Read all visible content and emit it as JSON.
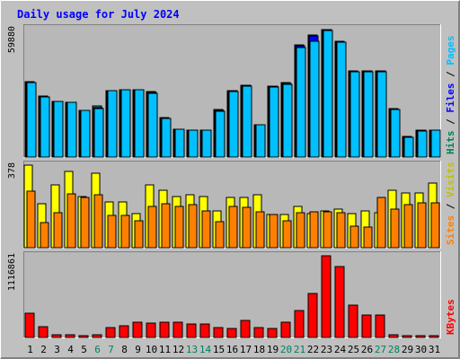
{
  "chart_data": {
    "title": "Daily usage for July 2024",
    "days": [
      "1",
      "2",
      "3",
      "4",
      "5",
      "6",
      "7",
      "8",
      "9",
      "10",
      "11",
      "12",
      "13",
      "14",
      "15",
      "16",
      "17",
      "18",
      "19",
      "20",
      "21",
      "22",
      "23",
      "24",
      "25",
      "26",
      "27",
      "28",
      "29",
      "30",
      "31"
    ],
    "weekend_days": [
      "6",
      "7",
      "13",
      "14",
      "20",
      "21",
      "27",
      "28"
    ],
    "panels": [
      {
        "name": "hits-files-pages",
        "type": "bar",
        "max_label": "59880",
        "ylim": [
          0,
          59880
        ],
        "right_labels": [
          {
            "text": "Hits",
            "color": "#00805c"
          },
          {
            "text": " / ",
            "color": "#000000"
          },
          {
            "text": "Files",
            "color": "#0000ff"
          },
          {
            "text": " / ",
            "color": "#000000"
          },
          {
            "text": "Pages",
            "color": "#00c0ff"
          }
        ],
        "series": [
          {
            "name": "Hits",
            "color": "#008080",
            "values": [
              35000,
              28500,
              26000,
              25500,
              21700,
              23700,
              31000,
              31300,
              31500,
              30500,
              18500,
              13000,
              12700,
              12700,
              22000,
              31000,
              33500,
              15000,
              33000,
              34700,
              52500,
              57000,
              59600,
              54000,
              40000,
              40200,
              40200,
              22500,
              9500,
              12500,
              12600
            ]
          },
          {
            "name": "Files",
            "color": "#0000ff",
            "values": [
              34800,
              28200,
              26000,
              25400,
              21600,
              23100,
              30900,
              31200,
              31300,
              30300,
              18200,
              13000,
              12600,
              12600,
              21900,
              30800,
              33300,
              14900,
              32900,
              34500,
              52000,
              56500,
              59400,
              53800,
              39800,
              40000,
              40000,
              22300,
              9400,
              12400,
              12500
            ]
          },
          {
            "name": "Pages",
            "color": "#00c0ff",
            "values": [
              34800,
              28000,
              26000,
              25400,
              21600,
              22600,
              30800,
              31200,
              31200,
              29800,
              18000,
              13000,
              12600,
              12600,
              21500,
              30500,
              33000,
              14900,
              32800,
              34000,
              51000,
              54000,
              59000,
              53500,
              39600,
              39900,
              39900,
              22000,
              9400,
              12200,
              12400
            ]
          }
        ]
      },
      {
        "name": "visits-sites",
        "type": "bar",
        "max_label": "378",
        "ylim": [
          0,
          378
        ],
        "right_labels": [
          {
            "text": "Sites",
            "color": "#ff8000"
          },
          {
            "text": " / ",
            "color": "#000000"
          },
          {
            "text": "Visits",
            "color": "#c0c000"
          }
        ],
        "series": [
          {
            "name": "Visits",
            "color": "#ffff00",
            "values": [
              378,
              200,
              286,
              349,
              236,
              343,
              211,
              211,
              156,
              286,
              265,
              236,
              244,
              236,
              170,
              230,
              230,
              244,
              153,
              153,
              190,
              156,
              167,
              176,
              156,
              170,
              162,
              262,
              251,
              251,
              294
            ]
          },
          {
            "name": "Sites",
            "color": "#ff8000",
            "values": [
              257,
              117,
              159,
              246,
              231,
              241,
              148,
              148,
              124,
              191,
              201,
              191,
              196,
              167,
              121,
              191,
              186,
              164,
              153,
              124,
              162,
              164,
              164,
              159,
              100,
              96,
              230,
              178,
              199,
              206,
              204
            ]
          }
        ]
      },
      {
        "name": "kbytes",
        "type": "bar",
        "max_label": "1116861",
        "ylim": [
          0,
          1116861
        ],
        "right_labels": [
          {
            "text": "KBytes",
            "color": "#ff0000"
          }
        ],
        "series": [
          {
            "name": "KBytes",
            "color": "#ff0000",
            "values": [
              326000,
              148000,
              34000,
              33000,
              24000,
              36000,
              129000,
              161000,
              207000,
              192000,
              207000,
              207000,
              188000,
              185000,
              140000,
              118000,
              232000,
              139000,
              126000,
              206000,
              364000,
              602000,
              1116861,
              964000,
              441000,
              302000,
              302000,
              32000,
              28000,
              28000,
              28000
            ]
          }
        ]
      }
    ]
  }
}
